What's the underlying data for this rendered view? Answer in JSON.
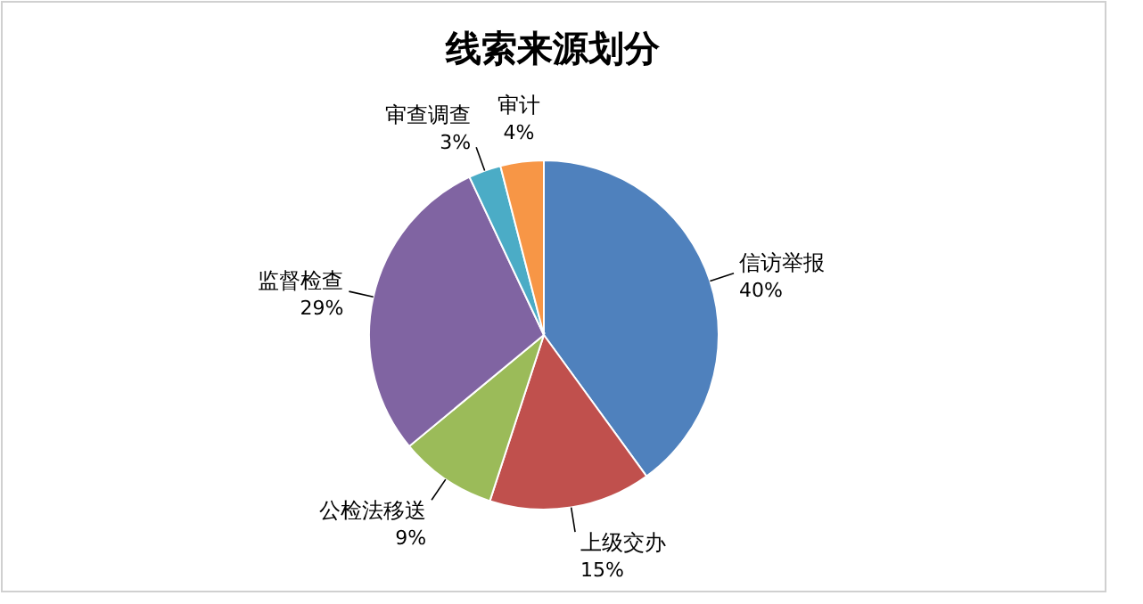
{
  "chart_data": {
    "type": "pie",
    "title": "线索来源划分",
    "categories": [
      "信访举报",
      "上级交办",
      "公检法移送",
      "监督检查",
      "审查调查",
      "审计"
    ],
    "values": [
      40,
      15,
      9,
      29,
      3,
      4
    ],
    "colors": [
      "#4f81bd",
      "#c0504d",
      "#9bbb59",
      "#8064a2",
      "#4bacc6",
      "#f79646"
    ],
    "value_labels": [
      "40%",
      "15%",
      "9%",
      "29%",
      "3%",
      "4%"
    ]
  }
}
